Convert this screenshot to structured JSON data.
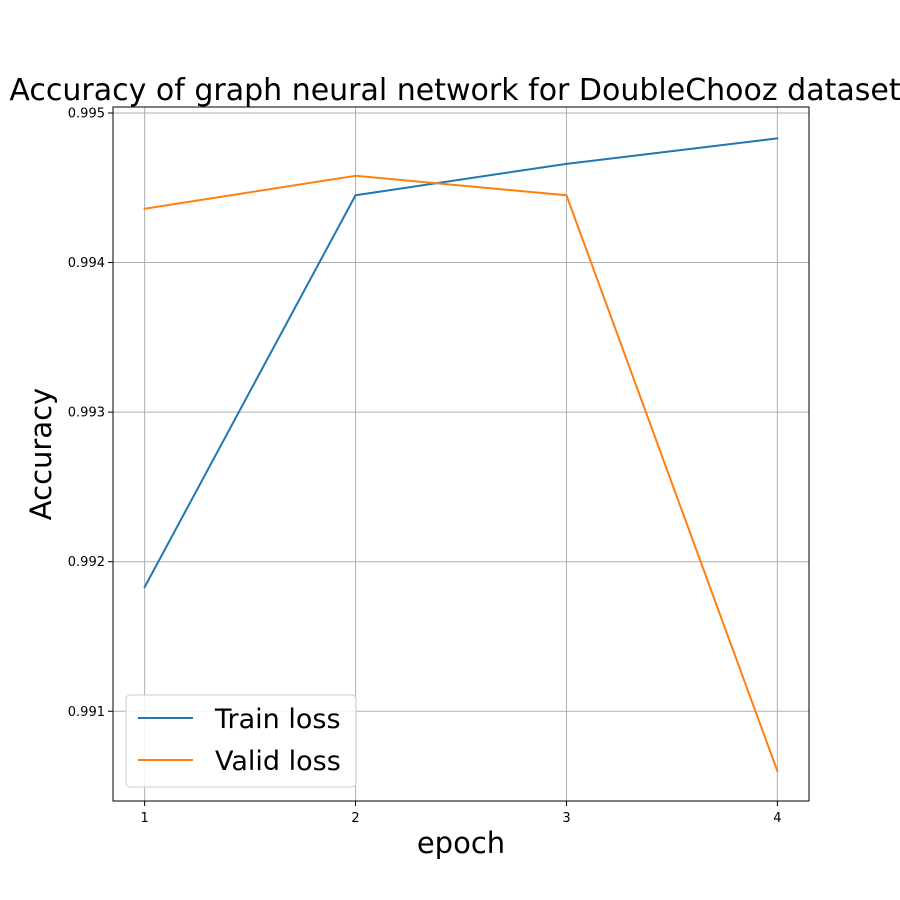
{
  "chart_data": {
    "type": "line",
    "title": "Accuracy of graph neural network for DoubleChooz dataset",
    "xlabel": "epoch",
    "ylabel": "Accuracy",
    "x": [
      1,
      2,
      3,
      4
    ],
    "x_ticks": [
      "1",
      "2",
      "3",
      "4"
    ],
    "y_ticks": [
      "0.991",
      "0.992",
      "0.993",
      "0.994",
      "0.995"
    ],
    "xlim": [
      0.85,
      4.15
    ],
    "ylim": [
      0.9904,
      0.99504
    ],
    "grid": true,
    "legend_position": "lower-left",
    "series": [
      {
        "name": "Train loss",
        "color": "#1f77b4",
        "values": [
          0.99183,
          0.99445,
          0.99466,
          0.99483
        ]
      },
      {
        "name": "Valid loss",
        "color": "#ff7f0e",
        "values": [
          0.99436,
          0.99458,
          0.99445,
          0.9906
        ]
      }
    ]
  }
}
